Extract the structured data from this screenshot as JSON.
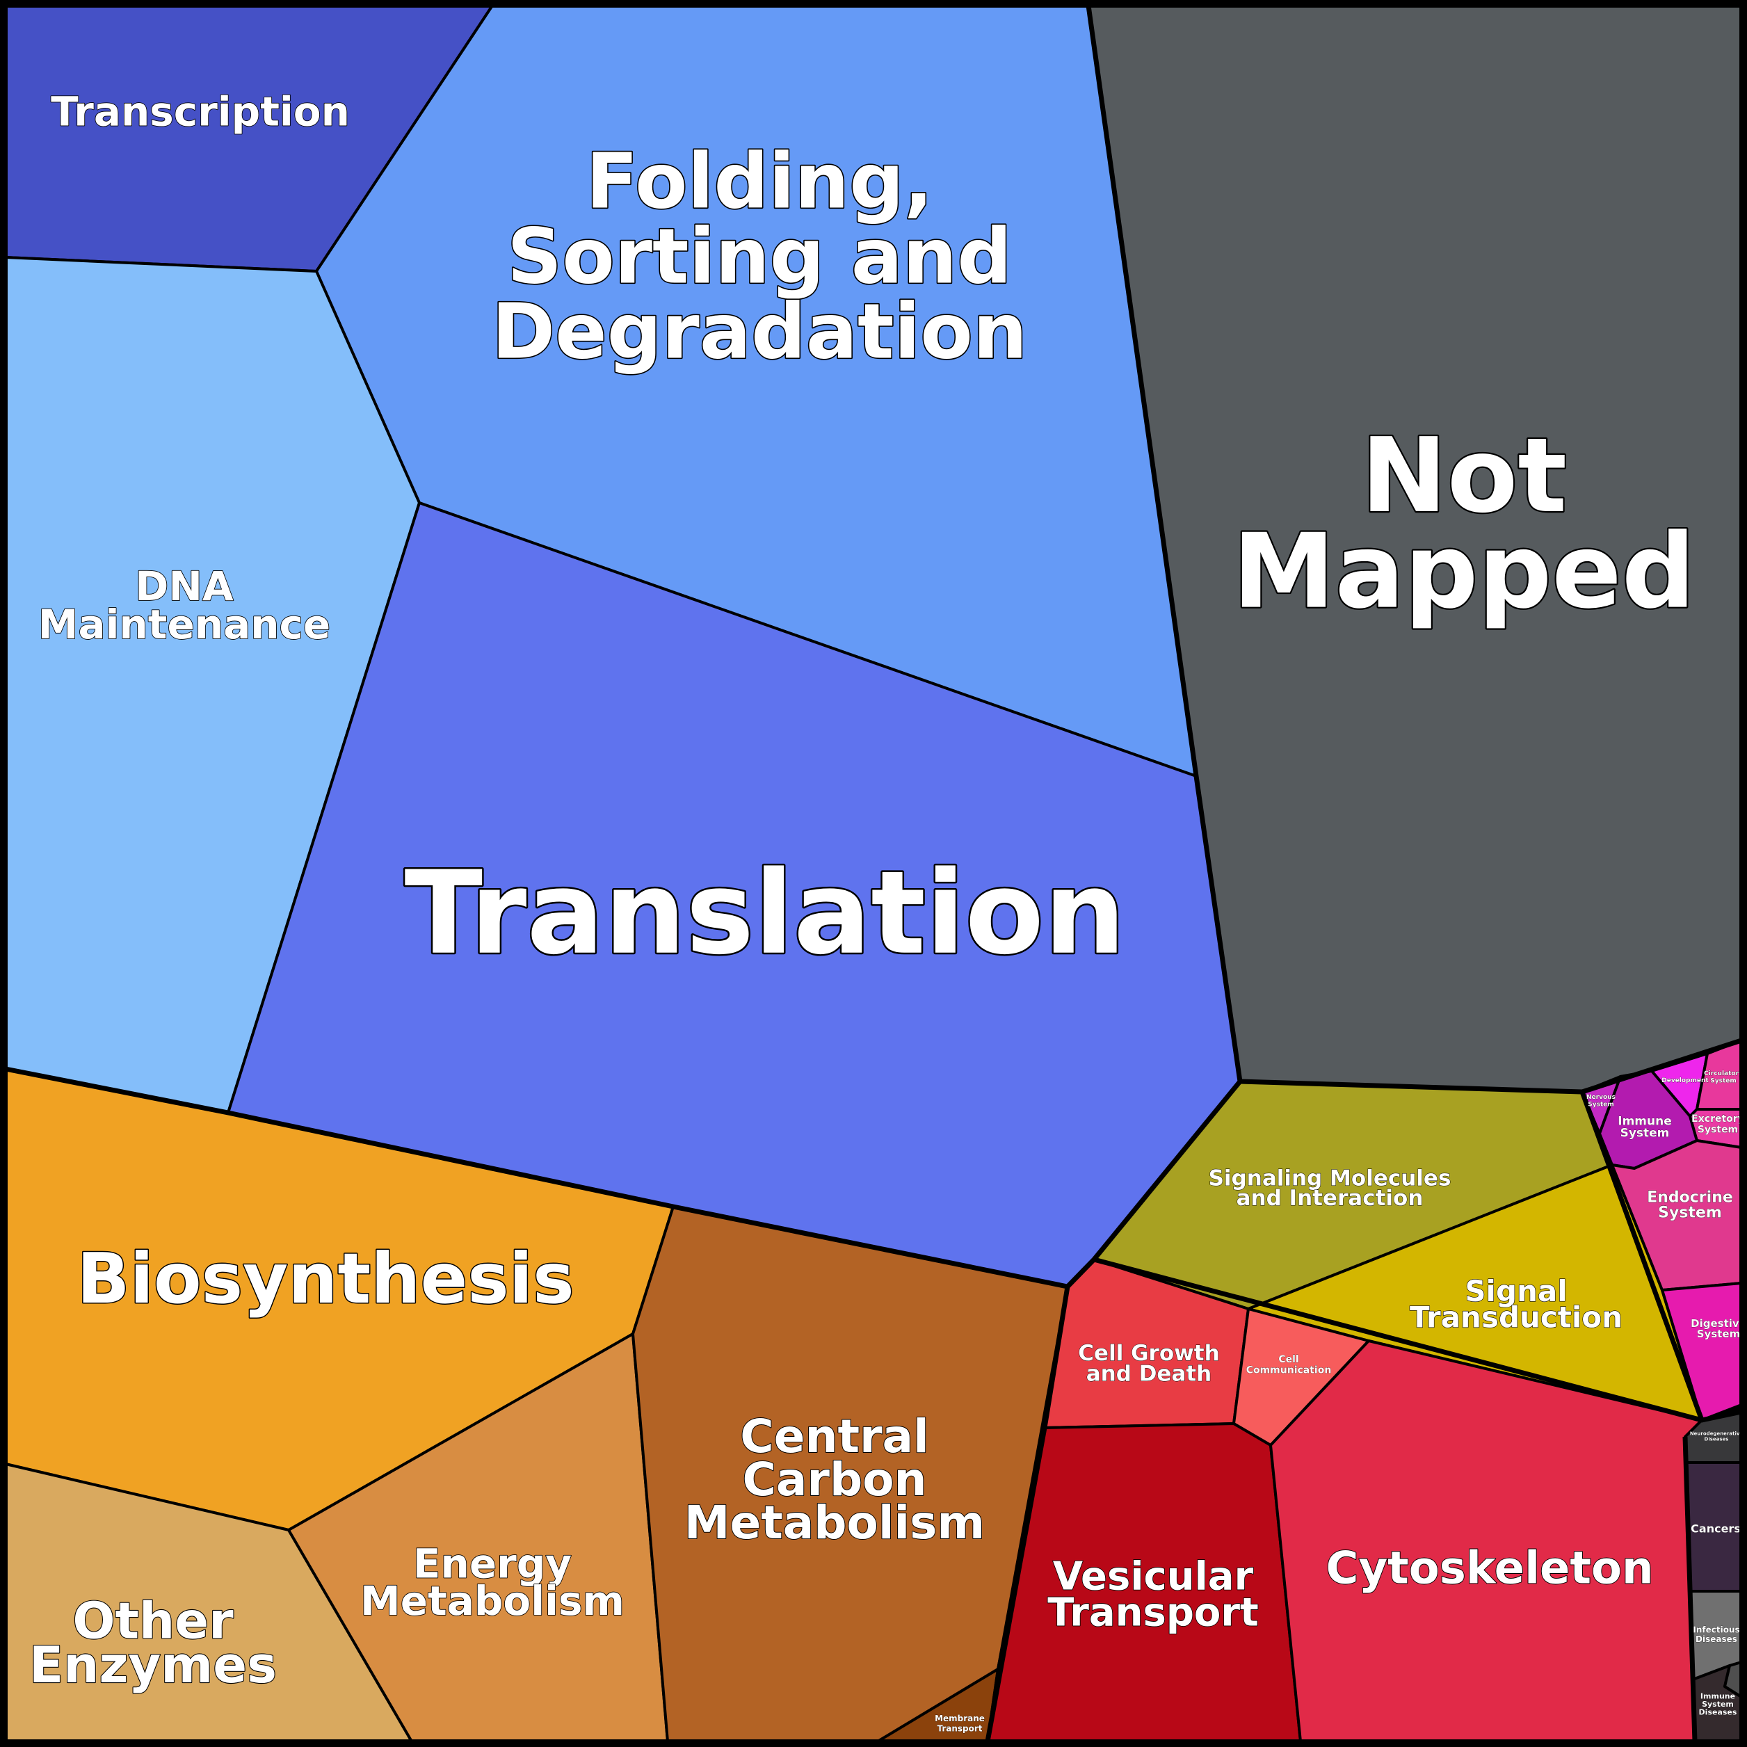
{
  "diagram": {
    "type": "voronoi-treemap",
    "cells": [
      {
        "id": "transcription",
        "label": [
          "Transcription"
        ],
        "color": "#4551C6"
      },
      {
        "id": "folding",
        "label": [
          "Folding,",
          "Sorting and",
          "Degradation"
        ],
        "color": "#659AF6"
      },
      {
        "id": "dna-maintenance",
        "label": [
          "DNA",
          "Maintenance"
        ],
        "color": "#84BEFA"
      },
      {
        "id": "translation",
        "label": [
          "Translation"
        ],
        "color": "#5F73EE"
      },
      {
        "id": "not-mapped",
        "label": [
          "Not",
          "Mapped"
        ],
        "color": "#565B5E"
      },
      {
        "id": "biosynthesis",
        "label": [
          "Biosynthesis"
        ],
        "color": "#F0A223"
      },
      {
        "id": "other-enzymes",
        "label": [
          "Other",
          "Enzymes"
        ],
        "color": "#D9A95F"
      },
      {
        "id": "energy-metabolism",
        "label": [
          "Energy",
          "Metabolism"
        ],
        "color": "#D88D42"
      },
      {
        "id": "central-carbon",
        "label": [
          "Central",
          "Carbon",
          "Metabolism"
        ],
        "color": "#B36325"
      },
      {
        "id": "membrane-transport",
        "label": [
          "Membrane",
          "Transport"
        ],
        "color": "#8B420C"
      },
      {
        "id": "signaling-molecules",
        "label": [
          "Signaling Molecules",
          "and Interaction"
        ],
        "color": "#A8A122"
      },
      {
        "id": "signal-transduction",
        "label": [
          "Signal",
          "Transduction"
        ],
        "color": "#D3B600"
      },
      {
        "id": "cell-growth",
        "label": [
          "Cell Growth",
          "and Death"
        ],
        "color": "#E83C44"
      },
      {
        "id": "cell-communication",
        "label": [
          "Cell",
          "Communication"
        ],
        "color": "#F75C5C"
      },
      {
        "id": "vesicular-transport",
        "label": [
          "Vesicular",
          "Transport"
        ],
        "color": "#B80817"
      },
      {
        "id": "cytoskeleton",
        "label": [
          "Cytoskeleton"
        ],
        "color": "#E12A48"
      },
      {
        "id": "nervous-system",
        "label": [
          "Nervous",
          "System"
        ],
        "color": "#C42AC4"
      },
      {
        "id": "development",
        "label": [
          "Development"
        ],
        "color": "#EE26EC"
      },
      {
        "id": "circulatory-system",
        "label": [
          "Circulatory",
          "System"
        ],
        "color": "#E8389C"
      },
      {
        "id": "immune-system",
        "label": [
          "Immune",
          "System"
        ],
        "color": "#B31BAF"
      },
      {
        "id": "excretory-system",
        "label": [
          "Excretory",
          "System"
        ],
        "color": "#EA3AA4"
      },
      {
        "id": "endocrine-system",
        "label": [
          "Endocrine",
          "System"
        ],
        "color": "#E0398E"
      },
      {
        "id": "digestive-system",
        "label": [
          "Digestive",
          "System"
        ],
        "color": "#E61BAE"
      },
      {
        "id": "neurodegenerative",
        "label": [
          "Neurodegenerative",
          "Diseases"
        ],
        "color": "#38383A"
      },
      {
        "id": "cancers",
        "label": [
          "Cancers"
        ],
        "color": "#3A2841"
      },
      {
        "id": "infectious-diseases",
        "label": [
          "Infectious",
          "Diseases"
        ],
        "color": "#707070"
      },
      {
        "id": "immune-system-diseases",
        "label": [
          "Immune",
          "System",
          "Diseases"
        ],
        "color": "#342A2D"
      },
      {
        "id": "small-disease",
        "label": [],
        "color": "#4F4F4F"
      }
    ]
  }
}
